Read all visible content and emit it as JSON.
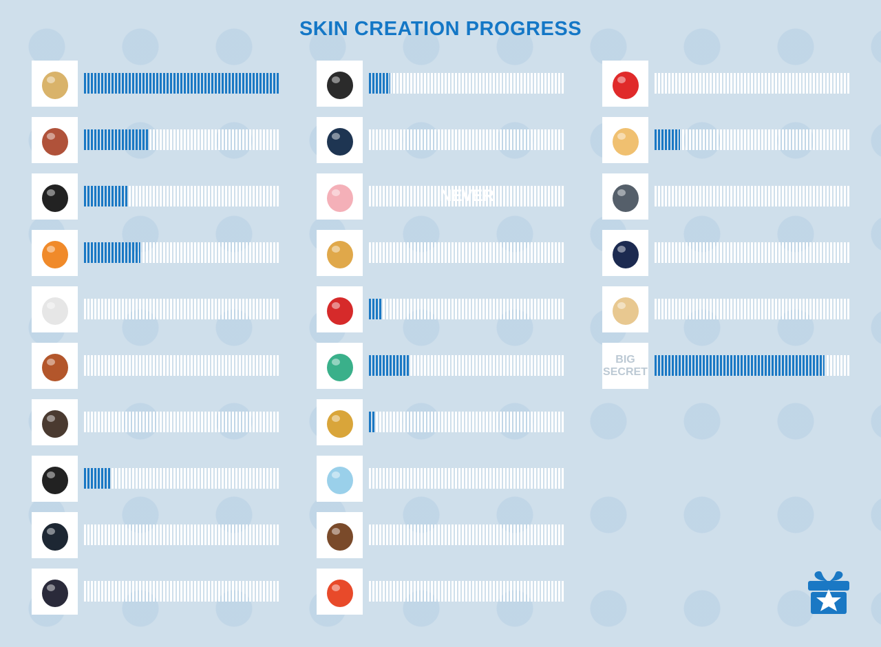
{
  "title": "SKIN CREATION PROGRESS",
  "columns": [
    {
      "items": [
        {
          "progress": 100
        },
        {
          "progress": 33
        },
        {
          "progress": 23
        },
        {
          "progress": 29
        },
        {
          "progress": 0
        },
        {
          "progress": 0
        },
        {
          "progress": 0
        },
        {
          "progress": 14
        },
        {
          "progress": 0
        },
        {
          "progress": 0
        }
      ]
    },
    {
      "items": [
        {
          "progress": 11
        },
        {
          "progress": 0
        },
        {
          "progress": 0,
          "overlay": "NEVER"
        },
        {
          "progress": 0
        },
        {
          "progress": 7
        },
        {
          "progress": 21
        },
        {
          "progress": 3
        },
        {
          "progress": 0
        },
        {
          "progress": 0
        },
        {
          "progress": 0
        }
      ]
    },
    {
      "items": [
        {
          "progress": 0
        },
        {
          "progress": 13
        },
        {
          "progress": 0
        },
        {
          "progress": 0
        },
        {
          "progress": 0
        },
        {
          "progress": 87,
          "icon_text": [
            "BIG",
            "SECRET"
          ]
        }
      ]
    }
  ]
}
